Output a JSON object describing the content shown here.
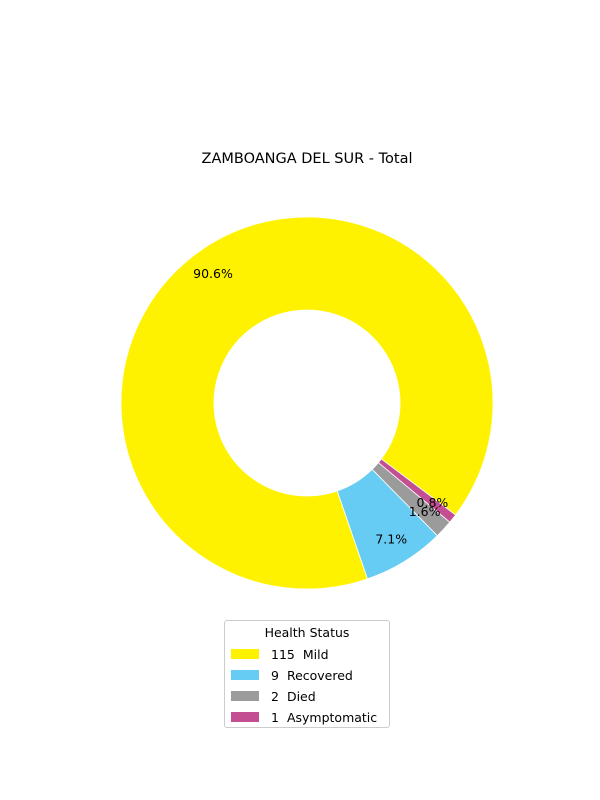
{
  "chart_data": {
    "type": "pie",
    "donut": true,
    "title": "ZAMBOANGA DEL SUR - Total",
    "legend_title": "Health Status",
    "legend_placement": "bottom-center",
    "start_angle_deg": -37,
    "direction": "counterclockwise",
    "slices": [
      {
        "label": "Mild",
        "value": 115,
        "pct_label": "90.6%",
        "color": "#fff200"
      },
      {
        "label": "Recovered",
        "value": 9,
        "pct_label": "7.1%",
        "color": "#66ccf3"
      },
      {
        "label": "Died",
        "value": 2,
        "pct_label": "1.6%",
        "color": "#9b9b9b"
      },
      {
        "label": "Asymptomatic",
        "value": 1,
        "pct_label": "0.8%",
        "color": "#c44e92"
      }
    ]
  }
}
